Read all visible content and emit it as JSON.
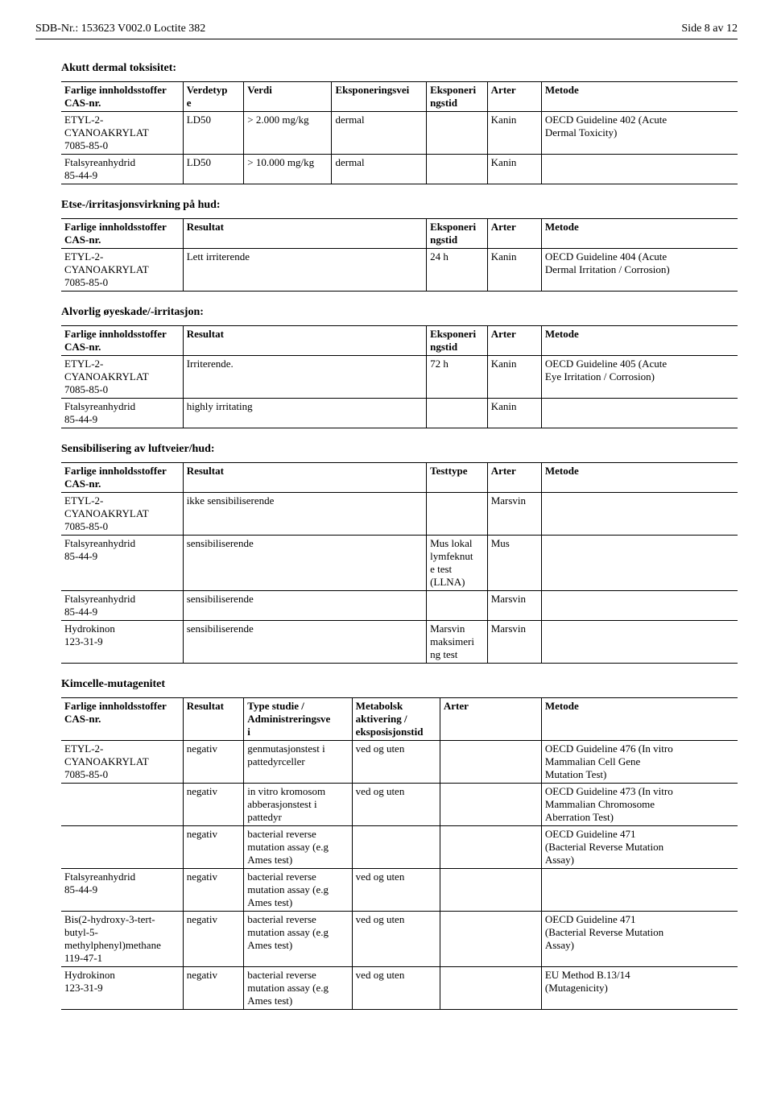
{
  "header": {
    "left": "SDB-Nr.: 153623   V002.0   Loctite 382",
    "right": "Side 8 av 12"
  },
  "sections": {
    "dermal_tox": "Akutt dermal toksisitet:",
    "skin": "Etse-/irritasjonsvirkning på hud:",
    "eye": "Alvorlig øyeskade/-irritasjon:",
    "sens": "Sensibilisering av luftveier/hud:",
    "mutagen": "Kimcelle-mutagenitet"
  },
  "cols": {
    "c1": "Farlige innholdsstoffer\nCAS-nr.",
    "verdetype": "Verdetyp\ne",
    "verdi": "Verdi",
    "exp_vei": "Eksponeringsvei",
    "exp_tid": "Eksponeri\nngstid",
    "arter": "Arter",
    "metode": "Metode",
    "resultat": "Resultat",
    "testtype": "Testtype",
    "studie": "Type studie /\nAdministreringsve\ni",
    "metab": "Metabolsk\naktivering /\neksposisjonstid"
  },
  "t1": {
    "r1": {
      "c1": "ETYL-2-\nCYANOAKRYLAT\n7085-85-0",
      "c2": "LD50",
      "c3": "> 2.000 mg/kg",
      "c4": "dermal",
      "c5": "",
      "c6": "Kanin",
      "c7": "OECD Guideline 402 (Acute\nDermal Toxicity)"
    },
    "r2": {
      "c1": "Ftalsyreanhydrid\n85-44-9",
      "c2": "LD50",
      "c3": "> 10.000 mg/kg",
      "c4": "dermal",
      "c5": "",
      "c6": "Kanin",
      "c7": ""
    }
  },
  "t2": {
    "r1": {
      "c1": "ETYL-2-\nCYANOAKRYLAT\n7085-85-0",
      "c2": "Lett irriterende",
      "c3": "24 h",
      "c4": "Kanin",
      "c5": "OECD Guideline 404 (Acute\nDermal Irritation / Corrosion)"
    }
  },
  "t3": {
    "r1": {
      "c1": "ETYL-2-\nCYANOAKRYLAT\n7085-85-0",
      "c2": "Irriterende.",
      "c3": "72 h",
      "c4": "Kanin",
      "c5": "OECD Guideline 405 (Acute\nEye Irritation / Corrosion)"
    },
    "r2": {
      "c1": "Ftalsyreanhydrid\n85-44-9",
      "c2": "highly irritating",
      "c3": "",
      "c4": "Kanin",
      "c5": ""
    }
  },
  "t4": {
    "r1": {
      "c1": "ETYL-2-\nCYANOAKRYLAT\n7085-85-0",
      "c2": "ikke sensibiliserende",
      "c3": "",
      "c4": "Marsvin",
      "c5": ""
    },
    "r2": {
      "c1": "Ftalsyreanhydrid\n85-44-9",
      "c2": "sensibiliserende",
      "c3": "Mus lokal\nlymfeknut\ne test\n(LLNA)",
      "c4": "Mus",
      "c5": ""
    },
    "r3": {
      "c1": "Ftalsyreanhydrid\n85-44-9",
      "c2": "sensibiliserende",
      "c3": "",
      "c4": "Marsvin",
      "c5": ""
    },
    "r4": {
      "c1": "Hydrokinon\n123-31-9",
      "c2": "sensibiliserende",
      "c3": "Marsvin\nmaksimeri\nng test",
      "c4": "Marsvin",
      "c5": ""
    }
  },
  "t5": {
    "r1": {
      "c1": "ETYL-2-\nCYANOAKRYLAT\n7085-85-0",
      "c2": "negativ",
      "c3": "genmutasjonstest i\npattedyrceller",
      "c4": "ved og uten",
      "c5": "",
      "c6": "OECD Guideline 476 (In vitro\nMammalian Cell Gene\nMutation Test)"
    },
    "r2": {
      "c1": "",
      "c2": "negativ",
      "c3": "in vitro kromosom\nabberasjonstest i\npattedyr",
      "c4": "ved og uten",
      "c5": "",
      "c6": "OECD Guideline 473 (In vitro\nMammalian Chromosome\nAberration Test)"
    },
    "r3": {
      "c1": "",
      "c2": "negativ",
      "c3": "bacterial reverse\nmutation assay (e.g\nAmes test)",
      "c4": "",
      "c5": "",
      "c6": "OECD Guideline 471\n(Bacterial Reverse Mutation\nAssay)"
    },
    "r4": {
      "c1": "Ftalsyreanhydrid\n85-44-9",
      "c2": "negativ",
      "c3": "bacterial reverse\nmutation assay (e.g\nAmes test)",
      "c4": "ved og uten",
      "c5": "",
      "c6": ""
    },
    "r5": {
      "c1": "Bis(2-hydroxy-3-tert-\nbutyl-5-\nmethylphenyl)methane\n119-47-1",
      "c2": "negativ",
      "c3": "bacterial reverse\nmutation assay (e.g\nAmes test)",
      "c4": "ved og uten",
      "c5": "",
      "c6": "OECD Guideline 471\n(Bacterial Reverse Mutation\nAssay)"
    },
    "r6": {
      "c1": "Hydrokinon\n123-31-9",
      "c2": "negativ",
      "c3": "bacterial reverse\nmutation assay (e.g\nAmes test)",
      "c4": "ved og uten",
      "c5": "",
      "c6": "EU Method B.13/14\n(Mutagenicity)"
    }
  }
}
